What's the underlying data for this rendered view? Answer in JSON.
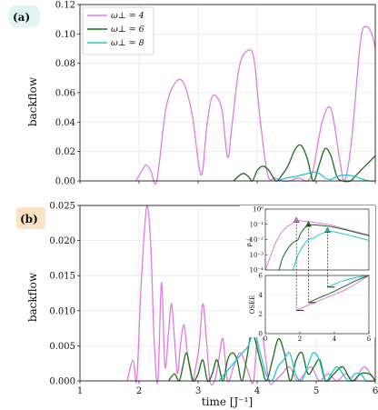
{
  "chart_data": [
    {
      "panel": "(a)",
      "type": "line",
      "xlabel": "",
      "ylabel": "backflow",
      "xlim": [
        1,
        6
      ],
      "ylim": [
        0,
        0.12
      ],
      "yticks": [
        "0.00",
        "0.02",
        "0.04",
        "0.06",
        "0.08",
        "0.10",
        "0.12"
      ],
      "grid": true,
      "legend_placement": "top-left",
      "series": [
        {
          "name": "ω⊥ = 4",
          "color": "#e07be0",
          "x": [
            1.95,
            2.05,
            2.12,
            2.2,
            2.3,
            2.45,
            2.6,
            2.75,
            2.9,
            3.05,
            3.15,
            3.25,
            3.4,
            3.5,
            3.58,
            3.7,
            3.85,
            3.95,
            4.05,
            4.18,
            4.3,
            4.42,
            4.55,
            4.7,
            4.85,
            4.95,
            5.1,
            5.25,
            5.4,
            5.48,
            5.6,
            5.75,
            5.85,
            5.95,
            6.0
          ],
          "y": [
            0.0,
            0.007,
            0.011,
            0.007,
            0.0,
            0.048,
            0.066,
            0.067,
            0.045,
            0.004,
            0.038,
            0.058,
            0.049,
            0.016,
            0.04,
            0.078,
            0.089,
            0.082,
            0.042,
            0.004,
            0.002,
            0.0,
            0.0,
            0.002,
            0.0,
            0.008,
            0.04,
            0.049,
            0.014,
            0.0,
            0.028,
            0.095,
            0.105,
            0.099,
            0.09
          ]
        },
        {
          "name": "ω⊥ = 6",
          "color": "#1a6b1a",
          "x": [
            3.6,
            3.75,
            3.85,
            3.92,
            4.0,
            4.1,
            4.2,
            4.32,
            4.42,
            4.52,
            4.65,
            4.75,
            4.85,
            4.95,
            5.05,
            5.15,
            5.25,
            5.35,
            5.45,
            5.58,
            5.68,
            5.8,
            5.9,
            6.0
          ],
          "y": [
            0.0,
            0.005,
            0.003,
            0.0,
            0.007,
            0.01,
            0.007,
            0.0,
            0.004,
            0.01,
            0.022,
            0.024,
            0.015,
            0.0,
            0.011,
            0.022,
            0.017,
            0.003,
            0.0,
            0.0,
            0.004,
            0.009,
            0.013,
            0.017
          ]
        },
        {
          "name": "ω⊥ = 8",
          "color": "#1ec8d2",
          "x": [
            4.35,
            4.5,
            4.65,
            4.75,
            4.85,
            4.95,
            5.05,
            5.15,
            5.25,
            5.35,
            5.5,
            5.65,
            5.8,
            5.9,
            6.0
          ],
          "y": [
            0.0,
            0.002,
            0.003,
            0.004,
            0.005,
            0.006,
            0.005,
            0.002,
            0.001,
            0.003,
            0.004,
            0.003,
            0.001,
            0.0,
            0.0
          ]
        }
      ]
    },
    {
      "panel": "(b)",
      "type": "line",
      "xlabel": "time [J⁻¹]",
      "ylabel": "backflow",
      "xlim": [
        1,
        6
      ],
      "ylim": [
        0,
        0.025
      ],
      "xticks": [
        "1",
        "2",
        "3",
        "4",
        "5",
        "6"
      ],
      "yticks": [
        "0.000",
        "0.005",
        "0.010",
        "0.015",
        "0.020",
        "0.025"
      ],
      "grid": true,
      "series": [
        {
          "name": "ω⊥ = 4",
          "color": "#e07be0",
          "x": [
            1.8,
            1.9,
            1.96,
            2.02,
            2.08,
            2.14,
            2.2,
            2.26,
            2.32,
            2.38,
            2.44,
            2.5,
            2.55,
            2.6,
            2.65,
            2.7,
            2.76,
            2.82,
            2.9,
            2.96,
            3.02,
            3.08,
            3.14,
            3.2,
            3.28,
            3.35,
            3.42,
            3.5,
            3.6,
            3.7,
            3.78,
            3.86,
            3.94,
            4.02,
            4.1,
            4.2,
            4.3,
            4.42,
            4.55,
            4.68,
            4.8,
            4.92,
            5.05,
            5.2,
            5.35,
            5.5,
            5.65,
            5.8,
            5.92,
            6.0
          ],
          "y": [
            0.0,
            0.003,
            0.0,
            0.011,
            0.02,
            0.025,
            0.019,
            0.005,
            0.0,
            0.014,
            0.002,
            0.007,
            0.011,
            0.006,
            0.001,
            0.005,
            0.008,
            0.004,
            0.0,
            0.002,
            0.005,
            0.011,
            0.006,
            0.0,
            0.0,
            0.003,
            0.006,
            0.0,
            0.002,
            0.004,
            0.003,
            0.001,
            0.0,
            0.008,
            0.006,
            0.0,
            0.0,
            0.001,
            0.002,
            0.0,
            0.001,
            0.002,
            0.0,
            0.001,
            0.0,
            0.001,
            0.0,
            0.002,
            0.001,
            0.0
          ]
        },
        {
          "name": "ω⊥ = 6",
          "color": "#1a6b1a",
          "x": [
            2.5,
            2.6,
            2.68,
            2.74,
            2.8,
            2.86,
            2.92,
            3.0,
            3.08,
            3.16,
            3.24,
            3.32,
            3.42,
            3.5,
            3.58,
            3.66,
            3.74,
            3.82,
            3.9,
            3.96,
            4.02,
            4.08,
            4.16,
            4.26,
            4.36,
            4.46,
            4.56,
            4.66,
            4.76,
            4.86,
            4.96,
            5.06,
            5.16,
            5.3,
            5.45,
            5.6,
            5.75,
            5.9,
            6.0
          ],
          "y": [
            0.0,
            0.001,
            0.0,
            0.002,
            0.004,
            0.002,
            0.0,
            0.001,
            0.003,
            0.0,
            0.001,
            0.003,
            0.0,
            0.003,
            0.004,
            0.003,
            0.0,
            0.003,
            0.007,
            0.006,
            0.004,
            0.002,
            0.0,
            0.003,
            0.006,
            0.004,
            0.0,
            0.003,
            0.004,
            0.001,
            0.002,
            0.003,
            0.0,
            0.001,
            0.002,
            0.0,
            0.001,
            0.001,
            0.0
          ]
        },
        {
          "name": "ω⊥ = 8",
          "color": "#1ec8d2",
          "x": [
            3.35,
            3.45,
            3.55,
            3.65,
            3.75,
            3.85,
            3.95,
            4.05,
            4.15,
            4.25,
            4.35,
            4.45,
            4.55,
            4.65,
            4.75,
            4.85,
            4.95,
            5.05,
            5.15,
            5.25,
            5.35,
            5.45,
            5.55,
            5.65,
            5.75,
            5.85,
            6.0
          ],
          "y": [
            0.0,
            0.001,
            0.002,
            0.003,
            0.004,
            0.005,
            0.007,
            0.004,
            0.001,
            0.0,
            0.002,
            0.003,
            0.004,
            0.001,
            0.0,
            0.002,
            0.004,
            0.003,
            0.0,
            0.001,
            0.002,
            0.001,
            0.0,
            0.001,
            0.001,
            0.0,
            0.0
          ]
        }
      ]
    },
    {
      "panel": "(b) inset top",
      "type": "line",
      "xlabel": "",
      "ylabel": "ρ⊥",
      "xlim": [
        0,
        6
      ],
      "ylim_log10": [
        -4,
        0
      ],
      "scale": "log",
      "yticks": [
        "10⁰",
        "10⁻¹",
        "10⁻²",
        "10⁻³",
        "10⁻⁴"
      ],
      "series": [
        {
          "name": "ω⊥ = 4",
          "color": "#e07be0",
          "x": [
            0.0,
            0.3,
            0.6,
            0.9,
            1.2,
            1.5,
            1.8,
            2.3,
            3.0,
            3.8,
            4.6,
            5.3,
            6.0
          ],
          "log10y": [
            -4,
            -3.1,
            -2.2,
            -1.6,
            -1.2,
            -1.0,
            -0.78,
            -0.8,
            -0.9,
            -1.05,
            -1.3,
            -1.5,
            -1.7
          ]
        },
        {
          "name": "ω⊥ = 6",
          "color": "#1a6b1a",
          "x": [
            0.8,
            1.0,
            1.3,
            1.6,
            1.9,
            2.0,
            2.2,
            2.5,
            3.0,
            3.8,
            4.6,
            5.3,
            6.0
          ],
          "log10y": [
            -4,
            -3.2,
            -2.6,
            -2.2,
            -2.0,
            -1.7,
            -1.35,
            -1.05,
            -1.05,
            -1.15,
            -1.35,
            -1.55,
            -1.75
          ]
        },
        {
          "name": "ω⊥ = 8",
          "color": "#1ec8d2",
          "x": [
            1.6,
            1.9,
            2.2,
            2.5,
            2.8,
            3.1,
            3.4,
            3.6,
            4.0,
            4.6,
            5.3,
            6.0
          ],
          "log10y": [
            -4,
            -3.0,
            -2.4,
            -2.0,
            -1.9,
            -1.7,
            -1.55,
            -1.45,
            -1.5,
            -1.65,
            -1.85,
            -2.05
          ]
        }
      ],
      "markers": [
        {
          "series": "ω⊥ = 4",
          "x": 1.8,
          "log10y": -0.78
        },
        {
          "series": "ω⊥ = 6",
          "x": 2.5,
          "log10y": -1.05
        },
        {
          "series": "ω⊥ = 8",
          "x": 3.6,
          "log10y": -1.45
        }
      ]
    },
    {
      "panel": "(b) inset bottom",
      "type": "line",
      "xlabel": "",
      "ylabel": "OSEE",
      "xlim": [
        0,
        6
      ],
      "ylim": [
        0,
        6
      ],
      "xticks": [
        "0",
        "2",
        "4",
        "6"
      ],
      "yticks": [
        "0",
        "2",
        "4",
        "6"
      ],
      "series": [
        {
          "name": "ω⊥ = 4",
          "color": "#e07be0",
          "x": [
            1.8,
            2.3,
            3.0,
            3.8,
            4.6,
            5.3,
            6.0
          ],
          "y": [
            2.4,
            2.8,
            3.3,
            3.9,
            4.5,
            5.2,
            6.0
          ]
        },
        {
          "name": "ω⊥ = 6",
          "color": "#1a6b1a",
          "x": [
            2.5,
            3.0,
            3.8,
            4.6,
            5.3,
            6.0
          ],
          "y": [
            3.2,
            3.6,
            4.2,
            4.9,
            5.5,
            6.0
          ]
        },
        {
          "name": "ω⊥ = 8",
          "color": "#1ec8d2",
          "x": [
            3.6,
            4.0,
            4.6,
            5.3,
            6.0
          ],
          "y": [
            4.8,
            5.1,
            5.5,
            5.8,
            6.1
          ]
        }
      ]
    }
  ],
  "legend": [
    {
      "label": "ω⊥ = 4",
      "color": "#e07be0"
    },
    {
      "label": "ω⊥ = 6",
      "color": "#1a6b1a"
    },
    {
      "label": "ω⊥ = 8",
      "color": "#1ec8d2"
    }
  ],
  "panel_tag_a": "(a)",
  "panel_tag_b": "(b)",
  "tag_a_bg": "#e0f4f6",
  "tag_b_bg": "#fde3c2"
}
